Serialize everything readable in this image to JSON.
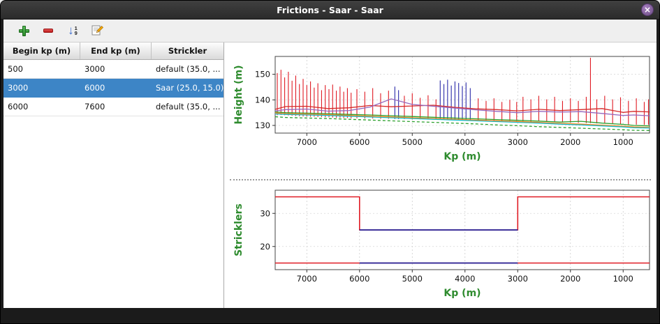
{
  "window": {
    "title": "Frictions - Saar - Saar",
    "close_glyph": "×"
  },
  "toolbar": {
    "sort_arrow": "↓",
    "sort_top": "1",
    "sort_bottom": "9",
    "buttons": [
      {
        "label": "add"
      },
      {
        "label": "remove"
      },
      {
        "label": "sort"
      },
      {
        "label": "edit"
      }
    ]
  },
  "table": {
    "columns": [
      "Begin kp (m)",
      "End kp (m)",
      "Strickler"
    ],
    "rows": [
      {
        "begin": "500",
        "end": "3000",
        "strickler": "default (35.0, ...",
        "selected": false
      },
      {
        "begin": "3000",
        "end": "6000",
        "strickler": "Saar (25.0, 15.0)",
        "selected": true
      },
      {
        "begin": "6000",
        "end": "7600",
        "strickler": "default (35.0, ...",
        "selected": false
      }
    ]
  },
  "colors": {
    "selection": "#3d85c6",
    "axis_label_green": "#2e8b2e",
    "bar_red": "#e01b24",
    "bar_navy": "#2a2aa8"
  },
  "chart_data": [
    {
      "type": "line",
      "title": "",
      "xlabel": "Kp (m)",
      "ylabel": "Height (m)",
      "label_color": "#2e8b2e",
      "x_reversed": true,
      "xlim": [
        7600,
        500
      ],
      "ylim": [
        127,
        157
      ],
      "xticks": [
        7000,
        6000,
        5000,
        4000,
        3000,
        2000,
        1000
      ],
      "yticks": [
        130,
        140,
        150
      ],
      "grid": true,
      "series_x": [
        7600,
        7400,
        7000,
        6600,
        6200,
        5800,
        5400,
        5000,
        4600,
        4200,
        3800,
        3400,
        3000,
        2600,
        2200,
        1800,
        1400,
        1000,
        800,
        500
      ],
      "series": [
        {
          "name": "water-level-red",
          "color": "#d42a2a",
          "values": [
            136.3,
            137.4,
            137.5,
            136.6,
            136.9,
            137.8,
            137.3,
            137.6,
            137.9,
            137.1,
            136.5,
            136.2,
            135.7,
            136.3,
            135.8,
            136.2,
            136.6,
            135.1,
            135.5,
            135.3
          ]
        },
        {
          "name": "bank-level-violet",
          "color": "#9467bd",
          "values": [
            135.7,
            136.2,
            136.4,
            135.6,
            135.8,
            137.2,
            140.4,
            138.2,
            137.5,
            136.8,
            136.1,
            135.5,
            135.0,
            135.5,
            135.2,
            135.4,
            134.7,
            133.9,
            134.1,
            133.8
          ]
        },
        {
          "name": "bed-level-green",
          "color": "#2ca02c",
          "values": [
            135.3,
            135.0,
            134.8,
            134.6,
            134.3,
            134.1,
            133.8,
            133.5,
            133.2,
            132.9,
            132.6,
            132.3,
            132.0,
            131.7,
            131.3,
            131.6,
            130.9,
            130.4,
            130.0,
            129.8
          ]
        },
        {
          "name": "bed-level-orange",
          "color": "#ff7f0e",
          "values": [
            134.9,
            134.6,
            134.4,
            134.2,
            133.9,
            133.6,
            133.3,
            133.0,
            132.7,
            132.4,
            132.1,
            131.8,
            131.5,
            131.2,
            130.8,
            130.5,
            130.1,
            129.7,
            129.4,
            129.2
          ]
        },
        {
          "name": "bed-level-cyan",
          "color": "#17becf",
          "values": [
            134.5,
            134.3,
            134.1,
            133.9,
            133.6,
            133.3,
            133.0,
            132.7,
            132.4,
            132.1,
            131.8,
            131.5,
            131.2,
            130.9,
            130.5,
            130.2,
            129.8,
            129.4,
            129.1,
            129.0
          ]
        },
        {
          "name": "thalweg-green-dashed",
          "color": "#2ca02c",
          "dash": true,
          "values": [
            133.4,
            133.1,
            132.9,
            132.7,
            132.4,
            132.1,
            131.8,
            131.5,
            131.2,
            130.9,
            130.6,
            130.2,
            129.9,
            129.5,
            129.2,
            128.9,
            128.6,
            128.3,
            128.1,
            128.0
          ]
        }
      ],
      "bar_groups": [
        {
          "name": "cross-section-extents-red",
          "color": "#e01b24",
          "bars": [
            [
              7560,
              134.0,
              150.5
            ],
            [
              7490,
              134.1,
              151.8
            ],
            [
              7420,
              134.0,
              148.8
            ],
            [
              7350,
              133.9,
              151.0
            ],
            [
              7280,
              133.8,
              147.5
            ],
            [
              7210,
              133.7,
              149.5
            ],
            [
              7140,
              133.6,
              146.2
            ],
            [
              7070,
              133.5,
              148.2
            ],
            [
              7000,
              133.5,
              145.8
            ],
            [
              6930,
              133.4,
              147.2
            ],
            [
              6860,
              133.4,
              144.8
            ],
            [
              6790,
              133.3,
              146.5
            ],
            [
              6720,
              133.3,
              143.8
            ],
            [
              6650,
              133.2,
              145.8
            ],
            [
              6580,
              133.2,
              144.2
            ],
            [
              6510,
              133.1,
              146.0
            ],
            [
              6440,
              133.0,
              143.6
            ],
            [
              6370,
              133.0,
              145.2
            ],
            [
              6300,
              132.9,
              143.2
            ],
            [
              6230,
              132.9,
              144.6
            ],
            [
              6160,
              132.8,
              142.8
            ],
            [
              6050,
              132.8,
              144.2
            ],
            [
              5900,
              132.7,
              143.2
            ],
            [
              5750,
              132.7,
              144.6
            ],
            [
              5600,
              132.6,
              142.6
            ],
            [
              5450,
              132.6,
              143.6
            ],
            [
              5150,
              132.5,
              141.6
            ],
            [
              5000,
              132.4,
              142.6
            ],
            [
              4850,
              132.4,
              140.8
            ],
            [
              4700,
              132.3,
              141.8
            ],
            [
              4550,
              132.3,
              140.2
            ],
            [
              3750,
              132.0,
              140.6
            ],
            [
              3600,
              132.0,
              139.6
            ],
            [
              3450,
              131.9,
              140.6
            ],
            [
              3300,
              131.8,
              139.2
            ],
            [
              3150,
              131.8,
              140.0
            ],
            [
              3020,
              131.7,
              139.2
            ],
            [
              2900,
              131.6,
              141.2
            ],
            [
              2750,
              131.5,
              140.2
            ],
            [
              2600,
              131.5,
              141.6
            ],
            [
              2450,
              131.4,
              140.2
            ],
            [
              2300,
              131.3,
              141.2
            ],
            [
              2150,
              131.2,
              139.6
            ],
            [
              2000,
              131.1,
              140.6
            ],
            [
              1850,
              131.0,
              139.6
            ],
            [
              1700,
              130.9,
              141.2
            ],
            [
              1620,
              130.9,
              156.5
            ],
            [
              1500,
              130.8,
              140.2
            ],
            [
              1350,
              130.7,
              141.6
            ],
            [
              1200,
              130.6,
              140.2
            ],
            [
              1050,
              130.5,
              141.0
            ],
            [
              900,
              130.4,
              139.6
            ],
            [
              750,
              130.3,
              140.6
            ],
            [
              600,
              130.2,
              139.2
            ],
            [
              520,
              130.2,
              140.2
            ]
          ]
        },
        {
          "name": "cross-section-extents-navy",
          "color": "#2a2aa8",
          "bars": [
            [
              5330,
              132.5,
              145.2
            ],
            [
              5260,
              132.5,
              143.8
            ],
            [
              4470,
              132.2,
              147.6
            ],
            [
              4400,
              132.2,
              146.2
            ],
            [
              4330,
              132.1,
              147.9
            ],
            [
              4260,
              132.1,
              145.6
            ],
            [
              4190,
              132.0,
              147.2
            ],
            [
              4120,
              132.0,
              146.6
            ],
            [
              4050,
              132.0,
              145.4
            ],
            [
              3980,
              131.9,
              146.8
            ],
            [
              3900,
              131.9,
              144.6
            ]
          ]
        }
      ]
    },
    {
      "type": "step",
      "title": "",
      "xlabel": "Kp (m)",
      "ylabel": "Stricklers",
      "label_color": "#2e8b2e",
      "x_reversed": true,
      "xlim": [
        7600,
        500
      ],
      "ylim": [
        13,
        37
      ],
      "xticks": [
        7000,
        6000,
        5000,
        4000,
        3000,
        2000,
        1000
      ],
      "yticks": [
        20,
        30
      ],
      "grid": true,
      "series": [
        {
          "name": "minor-bed-default-red",
          "color": "#e01b24",
          "width": 1.6,
          "points": [
            [
              7600,
              35
            ],
            [
              6000,
              35
            ],
            [
              6000,
              25
            ],
            [
              3000,
              25
            ],
            [
              3000,
              35
            ],
            [
              500,
              35
            ]
          ]
        },
        {
          "name": "major-bed-default-red",
          "color": "#e01b24",
          "width": 1.6,
          "points": [
            [
              7600,
              15
            ],
            [
              500,
              15
            ]
          ]
        },
        {
          "name": "minor-bed-saar-selected-blue",
          "color": "#26269c",
          "width": 1.8,
          "points": [
            [
              6000,
              25
            ],
            [
              3000,
              25
            ]
          ]
        },
        {
          "name": "major-bed-saar-selected-blue",
          "color": "#26269c",
          "width": 1.8,
          "points": [
            [
              6000,
              15
            ],
            [
              3000,
              15
            ]
          ]
        }
      ]
    }
  ]
}
